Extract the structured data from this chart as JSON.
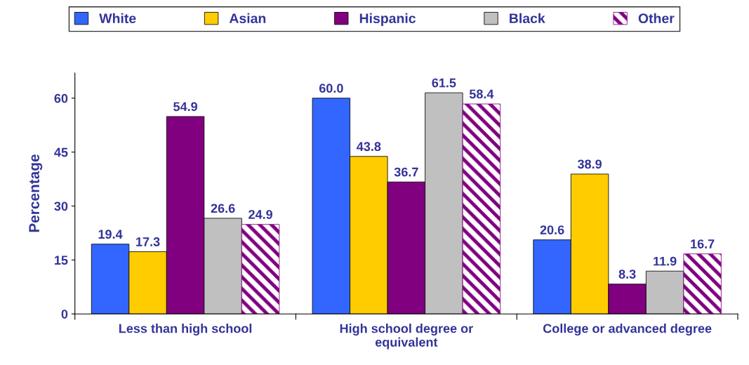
{
  "chart_data": {
    "type": "bar",
    "ylabel": "Percentage",
    "categories": [
      "Less than high school",
      "High school degree or\nequivalent",
      "College or advanced degree"
    ],
    "series": [
      {
        "name": "White",
        "color": "#3366ff",
        "values": [
          19.4,
          60.0,
          20.6
        ]
      },
      {
        "name": "Asian",
        "color": "#ffcc00",
        "values": [
          17.3,
          43.8,
          38.9
        ]
      },
      {
        "name": "Hispanic",
        "color": "#800080",
        "values": [
          54.9,
          36.7,
          8.3
        ]
      },
      {
        "name": "Black",
        "color": "#c0c0c0",
        "values": [
          26.6,
          61.5,
          11.9
        ]
      },
      {
        "name": "Other",
        "color": "#800080",
        "values": [
          24.9,
          58.4,
          16.7
        ]
      }
    ],
    "value_labels": [
      [
        "19.4",
        "60.0",
        "20.6"
      ],
      [
        "17.3",
        "43.8",
        "38.9"
      ],
      [
        "54.9",
        "36.7",
        "8.3"
      ],
      [
        "26.6",
        "61.5",
        "11.9"
      ],
      [
        "24.9",
        "58.4",
        "16.7"
      ]
    ],
    "ylim": [
      0,
      67
    ],
    "yticks": [
      0,
      15,
      30,
      45,
      60
    ],
    "grid": false,
    "legend": "top"
  }
}
